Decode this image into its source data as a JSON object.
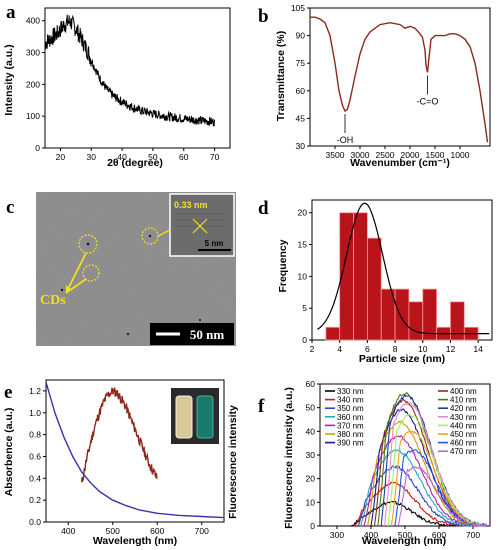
{
  "chart_data": [
    {
      "panel": "a",
      "type": "line",
      "xlabel": "2θ (degree)",
      "ylabel": "Intensity (a.u.)",
      "xlim": [
        15,
        75
      ],
      "ylim": [
        0,
        440
      ],
      "xticks": [
        20,
        30,
        40,
        50,
        60,
        70
      ],
      "yticks": [
        0,
        100,
        200,
        300,
        400
      ],
      "line_color": "#000000",
      "series": [
        {
          "x": [
            15,
            17,
            19,
            21,
            23,
            25,
            27,
            29,
            31,
            33,
            35,
            37,
            40,
            43,
            46,
            50,
            54,
            58,
            62,
            66,
            70
          ],
          "y": [
            330,
            345,
            360,
            385,
            400,
            375,
            340,
            300,
            255,
            215,
            185,
            165,
            145,
            130,
            118,
            108,
            100,
            95,
            90,
            86,
            82
          ]
        }
      ]
    },
    {
      "panel": "b",
      "type": "line",
      "xlabel": "Wavenumber (cm⁻¹)",
      "ylabel": "Transmittance (%)",
      "xlim": [
        4000,
        400
      ],
      "ylim": [
        30,
        105
      ],
      "xticks": [
        3500,
        3000,
        2500,
        2000,
        1500,
        1000
      ],
      "yticks": [
        30,
        45,
        60,
        75,
        90,
        105
      ],
      "line_color": "#8b2a1a",
      "annotations": [
        {
          "text": "-OH",
          "x": 3300,
          "y": 49
        },
        {
          "text": "-C=O",
          "x": 1650,
          "y": 70
        }
      ],
      "series": [
        {
          "x": [
            4000,
            3900,
            3800,
            3700,
            3600,
            3500,
            3420,
            3350,
            3300,
            3250,
            3200,
            3100,
            3000,
            2900,
            2800,
            2600,
            2400,
            2200,
            2100,
            2000,
            1900,
            1800,
            1750,
            1700,
            1680,
            1650,
            1620,
            1580,
            1500,
            1400,
            1300,
            1200,
            1100,
            1000,
            900,
            800,
            700,
            600,
            500,
            450
          ],
          "y": [
            100,
            100,
            99,
            97,
            90,
            75,
            60,
            52,
            49,
            50,
            55,
            68,
            80,
            88,
            92,
            96,
            97,
            96,
            94,
            95,
            94,
            91,
            89,
            82,
            74,
            70,
            78,
            88,
            90,
            90,
            90,
            91,
            91,
            90,
            88,
            84,
            75,
            60,
            42,
            32
          ]
        }
      ]
    },
    {
      "panel": "d",
      "type": "bar",
      "xlabel": "Particle size (nm)",
      "ylabel": "Frequency",
      "xlim": [
        2,
        15
      ],
      "ylim": [
        0,
        22
      ],
      "xticks": [
        2,
        4,
        6,
        8,
        10,
        12,
        14
      ],
      "yticks": [
        0,
        5,
        10,
        15,
        20
      ],
      "bar_color": "#b8141a",
      "bin_width": 1,
      "bin_centers": [
        3.5,
        4.5,
        5.5,
        6.5,
        7.5,
        8.5,
        9.5,
        10.5,
        11.5,
        12.5,
        13.5
      ],
      "values": [
        2,
        20,
        20,
        16,
        8,
        8,
        6,
        8,
        2,
        6,
        2
      ],
      "fit": {
        "type": "gaussian",
        "center": 5.8,
        "sigma": 1.3,
        "amplitude": 21.5,
        "baseline": 1
      }
    },
    {
      "panel": "e",
      "type": "line",
      "xlabel": "Wavelength (nm)",
      "ylabel": "Absorbence (a.u.)",
      "ylabel_right": "Fluorescence intensity",
      "xlim": [
        350,
        750
      ],
      "ylim": [
        0,
        1.3
      ],
      "xticks": [
        400,
        500,
        600,
        700
      ],
      "yticks": [
        0.0,
        0.2,
        0.4,
        0.6,
        0.8,
        1.0,
        1.2
      ],
      "series": [
        {
          "name": "absorbance",
          "color": "#3b33a8",
          "x": [
            350,
            370,
            390,
            410,
            430,
            450,
            470,
            500,
            530,
            560,
            600,
            650,
            700,
            750
          ],
          "y": [
            1.28,
            1.0,
            0.78,
            0.6,
            0.46,
            0.36,
            0.28,
            0.2,
            0.15,
            0.11,
            0.08,
            0.06,
            0.05,
            0.04
          ]
        },
        {
          "name": "fluorescence",
          "color": "#8b2a1a",
          "x": [
            430,
            440,
            450,
            460,
            470,
            480,
            490,
            500,
            510,
            520,
            530,
            540,
            550,
            560,
            570,
            580,
            590,
            600
          ],
          "y": [
            0.35,
            0.55,
            0.72,
            0.88,
            1.0,
            1.1,
            1.17,
            1.2,
            1.18,
            1.12,
            1.05,
            0.95,
            0.85,
            0.75,
            0.65,
            0.55,
            0.47,
            0.4
          ]
        }
      ]
    },
    {
      "panel": "f",
      "type": "line",
      "xlabel": "Wavelength (nm)",
      "ylabel": "Fluorescence intensity (a.u.)",
      "xlim": [
        250,
        750
      ],
      "ylim": [
        0,
        60
      ],
      "xticks": [
        300,
        400,
        500,
        600,
        700
      ],
      "yticks": [
        0,
        10,
        20,
        30,
        40,
        50,
        60
      ],
      "legend_left": [
        "330 nm",
        "340 nm",
        "350 nm",
        "360 nm",
        "370 nm",
        "380 nm",
        "390 nm"
      ],
      "legend_right": [
        "400 nm",
        "410 nm",
        "420 nm",
        "430 nm",
        "440 nm",
        "450 nm",
        "460 nm",
        "470 nm"
      ],
      "series": [
        {
          "name": "330 nm",
          "color": "#000000",
          "peak": 10,
          "center": 460,
          "width": 60,
          "start": 340
        },
        {
          "name": "340 nm",
          "color": "#d4161b",
          "peak": 18,
          "center": 465,
          "width": 65,
          "start": 350
        },
        {
          "name": "350 nm",
          "color": "#3344cc",
          "peak": 25,
          "center": 470,
          "width": 68,
          "start": 360
        },
        {
          "name": "360 nm",
          "color": "#22aacc",
          "peak": 32,
          "center": 475,
          "width": 70,
          "start": 370
        },
        {
          "name": "370 nm",
          "color": "#aa22aa",
          "peak": 38,
          "center": 480,
          "width": 70,
          "start": 380
        },
        {
          "name": "380 nm",
          "color": "#c8a000",
          "peak": 44,
          "center": 485,
          "width": 72,
          "start": 390
        },
        {
          "name": "390 nm",
          "color": "#1a1a8a",
          "peak": 49,
          "center": 490,
          "width": 72,
          "start": 400
        },
        {
          "name": "400 nm",
          "color": "#8b2a1a",
          "peak": 53,
          "center": 495,
          "width": 72,
          "start": 410
        },
        {
          "name": "410 nm",
          "color": "#4a7a1a",
          "peak": 56,
          "center": 500,
          "width": 72,
          "start": 420
        },
        {
          "name": "420 nm",
          "color": "#1f3a9a",
          "peak": 55,
          "center": 505,
          "width": 72,
          "start": 430
        },
        {
          "name": "430 nm",
          "color": "#ee88cc",
          "peak": 52,
          "center": 510,
          "width": 70,
          "start": 440
        },
        {
          "name": "440 nm",
          "color": "#aaee66",
          "peak": 47,
          "center": 515,
          "width": 68,
          "start": 450
        },
        {
          "name": "450 nm",
          "color": "#f0a020",
          "peak": 40,
          "center": 520,
          "width": 66,
          "start": 460
        },
        {
          "name": "460 nm",
          "color": "#2255dd",
          "peak": 32,
          "center": 525,
          "width": 64,
          "start": 470
        },
        {
          "name": "470 nm",
          "color": "#bb66dd",
          "peak": 25,
          "center": 530,
          "width": 62,
          "start": 480
        }
      ]
    }
  ],
  "panel_c": {
    "letter": "c",
    "lattice_label": "0.33 nm",
    "inset_scale_label": "5 nm",
    "scale_label": "50 nm",
    "cd_label": "CDs",
    "background_color": "#8a8a8a",
    "marker_color": "#f0e020"
  },
  "panel_letters": {
    "a": "a",
    "b": "b",
    "d": "d",
    "e": "e",
    "f": "f"
  }
}
